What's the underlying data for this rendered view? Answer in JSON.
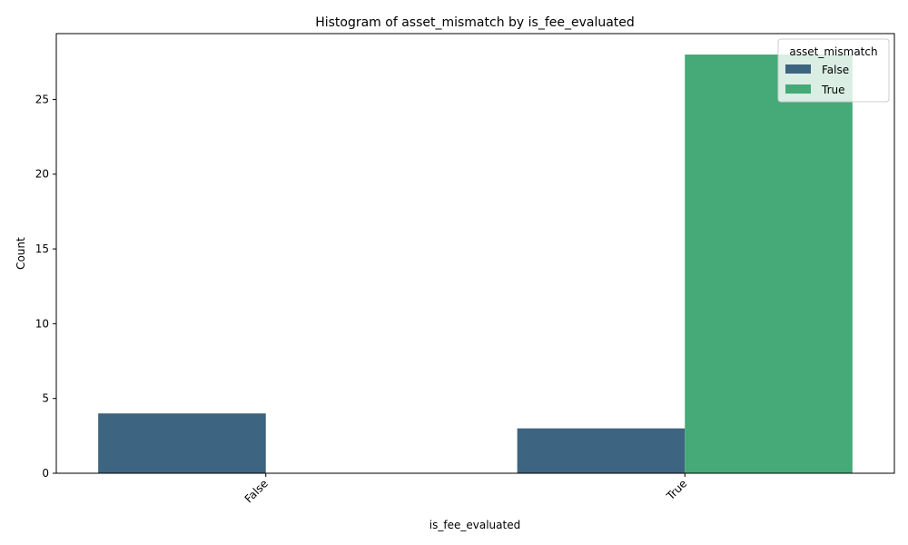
{
  "chart_data": {
    "type": "bar",
    "title": "Histogram of asset_mismatch by is_fee_evaluated",
    "xlabel": "is_fee_evaluated",
    "ylabel": "Count",
    "categories": [
      "False",
      "True"
    ],
    "series": [
      {
        "name": "False",
        "values": [
          4,
          3
        ],
        "color": "#3d6480"
      },
      {
        "name": "True",
        "values": [
          0,
          28
        ],
        "color": "#46a978"
      }
    ],
    "ylim": [
      0,
      29.4
    ],
    "yticks": [
      0,
      5,
      10,
      15,
      20,
      25
    ],
    "legend": {
      "title": "asset_mismatch",
      "placement": "top-right"
    },
    "grid": false
  }
}
